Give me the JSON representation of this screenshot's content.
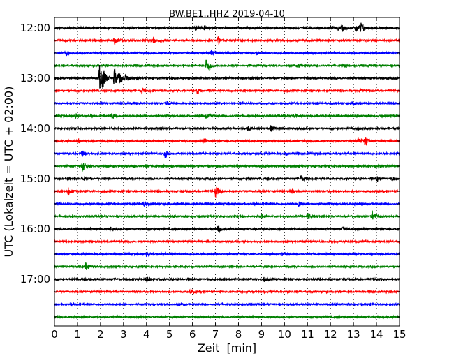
{
  "chart_data": {
    "type": "line",
    "title": "BW.BE1..HHZ 2019-04-10",
    "xlabel": "Zeit  [min]",
    "ylabel": "UTC (Lokalzeit = UTC + 02:00)",
    "xlim": [
      0,
      15
    ],
    "x_ticks": [
      "0",
      "1",
      "2",
      "3",
      "4",
      "5",
      "6",
      "7",
      "8",
      "9",
      "10",
      "11",
      "12",
      "13",
      "14",
      "15"
    ],
    "y_tick_labels": [
      "12:00",
      "13:00",
      "14:00",
      "15:00",
      "16:00",
      "17:00"
    ],
    "grid": {
      "vertical_dotted": true
    },
    "trace_colors": [
      "#000000",
      "#ff0000",
      "#0000ff",
      "#008000"
    ],
    "traces": [
      {
        "start": "12:00",
        "color": "#000000",
        "events": [
          {
            "t": 6.1,
            "amp": 0.25
          },
          {
            "t": 6.5,
            "amp": 0.2
          },
          {
            "t": 12.0,
            "amp": 0.15
          },
          {
            "t": 12.3,
            "amp": 0.2
          },
          {
            "t": 12.5,
            "amp": 0.3
          },
          {
            "t": 13.1,
            "amp": 0.45
          },
          {
            "t": 13.3,
            "amp": 0.5
          }
        ]
      },
      {
        "start": "12:15",
        "color": "#ff0000",
        "events": [
          {
            "t": 2.6,
            "amp": 0.35
          },
          {
            "t": 4.3,
            "amp": 0.3
          },
          {
            "t": 7.1,
            "amp": 0.35
          }
        ]
      },
      {
        "start": "12:30",
        "color": "#0000ff",
        "events": [
          {
            "t": 0.5,
            "amp": 0.3
          },
          {
            "t": 6.8,
            "amp": 0.35
          },
          {
            "t": 8.8,
            "amp": 0.15
          }
        ]
      },
      {
        "start": "12:45",
        "color": "#008000",
        "events": [
          {
            "t": 6.6,
            "amp": 0.9
          },
          {
            "t": 10.6,
            "amp": 0.2
          },
          {
            "t": 12.5,
            "amp": 0.15
          }
        ]
      },
      {
        "start": "13:00",
        "color": "#000000",
        "events": [
          {
            "t": 1.95,
            "amp": 1.3
          },
          {
            "t": 2.1,
            "amp": 0.8
          },
          {
            "t": 2.6,
            "amp": 1.0
          },
          {
            "t": 2.8,
            "amp": 0.6
          },
          {
            "t": 3.1,
            "amp": 0.3
          }
        ]
      },
      {
        "start": "13:15",
        "color": "#ff0000",
        "events": [
          {
            "t": 3.8,
            "amp": 0.3
          },
          {
            "t": 6.2,
            "amp": 0.25
          },
          {
            "t": 13.3,
            "amp": 0.15
          }
        ]
      },
      {
        "start": "13:30",
        "color": "#0000ff",
        "events": [
          {
            "t": 3.4,
            "amp": 0.15
          },
          {
            "t": 4.9,
            "amp": 0.15
          },
          {
            "t": 13.0,
            "amp": 0.15
          }
        ]
      },
      {
        "start": "13:45",
        "color": "#008000",
        "events": [
          {
            "t": 0.9,
            "amp": 0.2
          },
          {
            "t": 2.5,
            "amp": 0.3
          },
          {
            "t": 6.6,
            "amp": 0.25
          },
          {
            "t": 10.4,
            "amp": 0.2
          }
        ]
      },
      {
        "start": "14:00",
        "color": "#000000",
        "events": [
          {
            "t": 8.4,
            "amp": 0.2
          },
          {
            "t": 9.4,
            "amp": 0.3
          },
          {
            "t": 13.2,
            "amp": 0.15
          }
        ]
      },
      {
        "start": "14:15",
        "color": "#ff0000",
        "events": [
          {
            "t": 1.0,
            "amp": 0.25
          },
          {
            "t": 6.5,
            "amp": 0.2
          },
          {
            "t": 13.2,
            "amp": 0.35
          },
          {
            "t": 13.5,
            "amp": 0.45
          }
        ]
      },
      {
        "start": "14:30",
        "color": "#0000ff",
        "events": [
          {
            "t": 1.2,
            "amp": 0.3
          },
          {
            "t": 4.8,
            "amp": 0.45
          },
          {
            "t": 10.1,
            "amp": 0.15
          }
        ]
      },
      {
        "start": "14:45",
        "color": "#008000",
        "events": [
          {
            "t": 1.2,
            "amp": 0.5
          },
          {
            "t": 4.0,
            "amp": 0.2
          },
          {
            "t": 14.1,
            "amp": 0.15
          }
        ]
      },
      {
        "start": "15:00",
        "color": "#000000",
        "events": [
          {
            "t": 1.2,
            "amp": 0.25
          },
          {
            "t": 8.4,
            "amp": 0.2
          },
          {
            "t": 10.7,
            "amp": 0.3
          },
          {
            "t": 14.0,
            "amp": 0.3
          },
          {
            "t": 14.7,
            "amp": 0.2
          }
        ]
      },
      {
        "start": "15:15",
        "color": "#ff0000",
        "events": [
          {
            "t": 0.6,
            "amp": 0.4
          },
          {
            "t": 7.0,
            "amp": 0.55
          },
          {
            "t": 10.3,
            "amp": 0.2
          }
        ]
      },
      {
        "start": "15:30",
        "color": "#0000ff",
        "events": [
          {
            "t": 3.9,
            "amp": 0.15
          },
          {
            "t": 10.6,
            "amp": 0.3
          },
          {
            "t": 13.0,
            "amp": 0.15
          }
        ]
      },
      {
        "start": "15:45",
        "color": "#008000",
        "events": [
          {
            "t": 9.0,
            "amp": 0.2
          },
          {
            "t": 11.0,
            "amp": 0.3
          },
          {
            "t": 13.8,
            "amp": 0.5
          }
        ]
      },
      {
        "start": "16:00",
        "color": "#000000",
        "events": [
          {
            "t": 2.4,
            "amp": 0.15
          },
          {
            "t": 7.1,
            "amp": 0.45
          },
          {
            "t": 12.5,
            "amp": 0.15
          }
        ]
      },
      {
        "start": "16:15",
        "color": "#ff0000",
        "events": []
      },
      {
        "start": "16:30",
        "color": "#0000ff",
        "events": [
          {
            "t": 4.0,
            "amp": 0.15
          },
          {
            "t": 9.9,
            "amp": 0.15
          }
        ]
      },
      {
        "start": "16:45",
        "color": "#008000",
        "events": [
          {
            "t": 1.35,
            "amp": 0.4
          }
        ]
      },
      {
        "start": "17:00",
        "color": "#000000",
        "events": [
          {
            "t": 4.0,
            "amp": 0.35
          },
          {
            "t": 9.1,
            "amp": 0.2
          }
        ]
      },
      {
        "start": "17:15",
        "color": "#ff0000",
        "events": [
          {
            "t": 5.9,
            "amp": 0.2
          }
        ]
      },
      {
        "start": "17:30",
        "color": "#0000ff",
        "events": []
      },
      {
        "start": "17:45",
        "color": "#008000",
        "events": []
      }
    ]
  }
}
